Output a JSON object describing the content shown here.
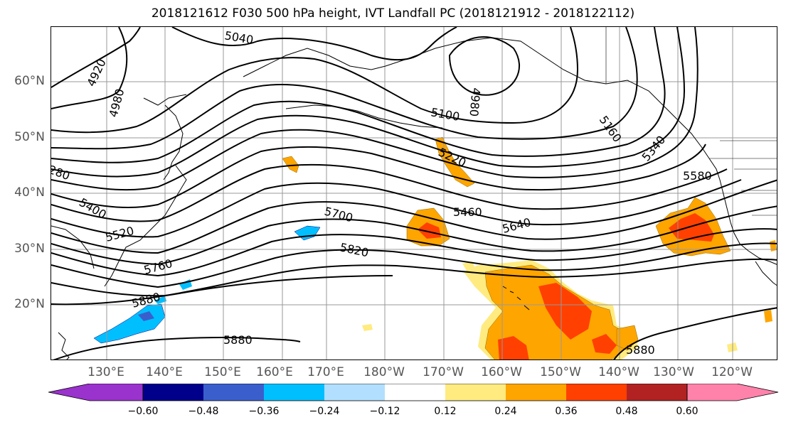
{
  "title": "2018121612 F030 500 hPa height, IVT Landfall PC (2018121912 - 2018122112)",
  "lat_labels": [
    "60°N",
    "50°N",
    "40°N",
    "30°N",
    "20°N"
  ],
  "lon_labels": [
    "130°E",
    "140°E",
    "150°E",
    "160°E",
    "170°E",
    "180°W",
    "170°W",
    "160°W",
    "150°W",
    "140°W",
    "130°W",
    "120°W"
  ],
  "contour_labels": [
    "5040",
    "4920",
    "4980",
    "4980",
    "5100",
    "5160",
    "5340",
    "5220",
    "5580",
    "280",
    "5400",
    "5520",
    "5700",
    "5460",
    "5640",
    "5820",
    "5760",
    "5880",
    "5880",
    "5880"
  ],
  "colorbar": {
    "ticks": [
      "−0.60",
      "−0.48",
      "−0.36",
      "−0.24",
      "−0.12",
      "0.12",
      "0.24",
      "0.36",
      "0.48",
      "0.60"
    ],
    "colors": [
      "#9a32cd",
      "#00008b",
      "#3a5fcd",
      "#00bfff",
      "#b2dfff",
      "#ffffff",
      "#ffeb80",
      "#ffa500",
      "#ff4000",
      "#b22222",
      "#ff82ab"
    ]
  },
  "fill_colors": {
    "light_yellow": "#ffeb80",
    "orange": "#ffa500",
    "red_orange": "#ff4000",
    "light_blue": "#b2dfff",
    "cyan": "#00bfff",
    "blue": "#3a5fcd"
  }
}
